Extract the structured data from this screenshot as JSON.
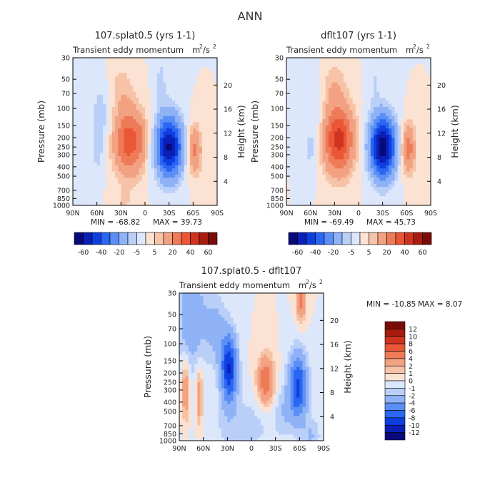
{
  "title": "ANN",
  "colors": {
    "blues": [
      "#08097a",
      "#0a1fb5",
      "#0d3fe0",
      "#2a66f2",
      "#5b8ff5",
      "#8fb2f7",
      "#b9cff8",
      "#dce7fb"
    ],
    "reds": [
      "#fbe2d3",
      "#f6c3a7",
      "#f2a283",
      "#ee7b58",
      "#ea5636",
      "#cf3420",
      "#a81c10",
      "#7a0b08"
    ]
  },
  "chart_data": [
    {
      "type": "heatmap",
      "title": "107.splat0.5 (yrs 1-1)",
      "subtitle": "Transient eddy momentum",
      "units_base": "m",
      "units_exp1": "2",
      "units_sep": "/s",
      "units_exp2": "2",
      "ylabel": "Pressure (mb)",
      "ylabel_right": "Height (km)",
      "x_ticks": [
        "90N",
        "60N",
        "30N",
        "0",
        "30S",
        "60S",
        "90S"
      ],
      "y_ticks": [
        "30",
        "50",
        "70",
        "100",
        "150",
        "200",
        "250",
        "300",
        "400",
        "500",
        "700",
        "850",
        "1000"
      ],
      "y_ticks_right": [
        "20",
        "16",
        "12",
        "8",
        "4"
      ],
      "min_label": "MIN = -68.82",
      "max_label": "MAX = 39.73",
      "colorbar": {
        "orientation": "horizontal",
        "labels": [
          "-60",
          "-40",
          "-20",
          "-5",
          "5",
          "20",
          "40",
          "60"
        ],
        "levels": [
          -60,
          -50,
          -40,
          -30,
          -20,
          -10,
          -5,
          0,
          5,
          10,
          20,
          30,
          40,
          50,
          60
        ]
      },
      "features": [
        {
          "lat": 20,
          "p": 220,
          "amp": 36,
          "wlat": 13,
          "wlog": 0.55
        },
        {
          "lat": -30,
          "p": 250,
          "amp": -62,
          "wlat": 11,
          "wlog": 0.5
        },
        {
          "lat": -62,
          "p": 270,
          "amp": 22,
          "wlat": 6,
          "wlog": 0.4
        },
        {
          "lat": 55,
          "p": 120,
          "amp": -8,
          "wlat": 8,
          "wlog": 0.6
        },
        {
          "lat": 5,
          "p": 200,
          "amp": 8,
          "wlat": 4,
          "wlog": 0.3
        },
        {
          "lat": 30,
          "p": 60,
          "amp": 7,
          "wlat": 10,
          "wlog": 0.4
        },
        {
          "lat": 60,
          "p": 300,
          "amp": -5,
          "wlat": 6,
          "wlog": 0.4
        },
        {
          "lat": -20,
          "p": 50,
          "amp": -6,
          "wlat": 6,
          "wlog": 0.5
        },
        {
          "lat": 25,
          "p": 900,
          "amp": 6,
          "wlat": 5,
          "wlog": 0.2
        }
      ]
    },
    {
      "type": "heatmap",
      "title": "dflt107 (yrs 1-1)",
      "subtitle": "Transient eddy momentum",
      "units_base": "m",
      "units_exp1": "2",
      "units_sep": "/s",
      "units_exp2": "2",
      "ylabel": "Pressure (mb)",
      "ylabel_right": "Height (km)",
      "x_ticks": [
        "90N",
        "60N",
        "30N",
        "0",
        "30S",
        "60S",
        "90S"
      ],
      "y_ticks": [
        "30",
        "50",
        "70",
        "100",
        "150",
        "200",
        "250",
        "300",
        "400",
        "500",
        "700",
        "850",
        "1000"
      ],
      "y_ticks_right": [
        "20",
        "16",
        "12",
        "8",
        "4"
      ],
      "min_label": "MIN = -69.49",
      "max_label": "MAX = 45.73",
      "colorbar": {
        "orientation": "horizontal",
        "labels": [
          "-60",
          "-40",
          "-20",
          "-5",
          "5",
          "20",
          "40",
          "60"
        ],
        "levels": [
          -60,
          -50,
          -40,
          -30,
          -20,
          -10,
          -5,
          0,
          5,
          10,
          20,
          30,
          40,
          50,
          60
        ]
      },
      "features": [
        {
          "lat": 25,
          "p": 210,
          "amp": 44,
          "wlat": 13,
          "wlog": 0.55
        },
        {
          "lat": -30,
          "p": 250,
          "amp": -66,
          "wlat": 11,
          "wlog": 0.5
        },
        {
          "lat": -62,
          "p": 260,
          "amp": 25,
          "wlat": 6,
          "wlog": 0.4
        },
        {
          "lat": 55,
          "p": 120,
          "amp": -6,
          "wlat": 8,
          "wlog": 0.6
        },
        {
          "lat": 30,
          "p": 60,
          "amp": 9,
          "wlat": 10,
          "wlog": 0.4
        },
        {
          "lat": -20,
          "p": 50,
          "amp": -5,
          "wlat": 6,
          "wlog": 0.5
        },
        {
          "lat": 60,
          "p": 300,
          "amp": -5,
          "wlat": 6,
          "wlog": 0.4
        }
      ]
    },
    {
      "type": "heatmap",
      "title": "107.splat0.5 - dflt107",
      "subtitle": "Transient eddy momentum",
      "units_base": "m",
      "units_exp1": "2",
      "units_sep": "/s",
      "units_exp2": "2",
      "ylabel": "Pressure (mb)",
      "ylabel_right": "Height (km)",
      "x_ticks": [
        "90N",
        "60N",
        "30N",
        "0",
        "30S",
        "60S",
        "90S"
      ],
      "y_ticks": [
        "30",
        "50",
        "70",
        "100",
        "150",
        "200",
        "250",
        "300",
        "400",
        "500",
        "700",
        "850",
        "1000"
      ],
      "y_ticks_right": [
        "20",
        "16",
        "12",
        "8",
        "4"
      ],
      "min_label": "MIN = -10.85",
      "max_label": "MAX =    8.07",
      "colorbar": {
        "orientation": "vertical",
        "labels": [
          "12",
          "10",
          "8",
          "6",
          "4",
          "2",
          "1",
          "0",
          "-1",
          "-2",
          "-4",
          "-6",
          "-8",
          "-10",
          "-12"
        ],
        "levels": [
          -12,
          -10,
          -8,
          -6,
          -4,
          -2,
          -1,
          0,
          1,
          2,
          4,
          6,
          8,
          10,
          12
        ]
      },
      "features": [
        {
          "lat": 28,
          "p": 180,
          "amp": -10,
          "wlat": 7,
          "wlog": 0.55
        },
        {
          "lat": -58,
          "p": 280,
          "amp": -8.5,
          "wlat": 8,
          "wlog": 0.55
        },
        {
          "lat": -18,
          "p": 240,
          "amp": 6,
          "wlat": 7,
          "wlog": 0.4
        },
        {
          "lat": -62,
          "p": 35,
          "amp": 5,
          "wlat": 4,
          "wlog": 0.35
        },
        {
          "lat": 82,
          "p": 300,
          "amp": 4,
          "wlat": 3,
          "wlog": 0.5
        },
        {
          "lat": 65,
          "p": 350,
          "amp": 3.5,
          "wlat": 3,
          "wlog": 0.5
        },
        {
          "lat": 75,
          "p": 50,
          "amp": -3.5,
          "wlat": 12,
          "wlog": 0.9
        },
        {
          "lat": 45,
          "p": 70,
          "amp": -2.5,
          "wlat": 10,
          "wlog": 0.6
        },
        {
          "lat": 10,
          "p": 700,
          "amp": -1.5,
          "wlat": 30,
          "wlog": 0.5
        },
        {
          "lat": -75,
          "p": 900,
          "amp": -2,
          "wlat": 8,
          "wlog": 0.3
        },
        {
          "lat": -40,
          "p": 500,
          "amp": -1.5,
          "wlat": 8,
          "wlog": 0.4
        }
      ]
    }
  ]
}
